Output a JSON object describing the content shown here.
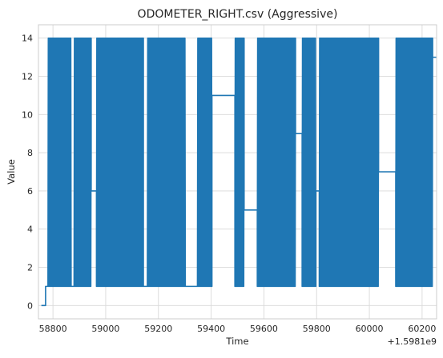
{
  "chart_data": {
    "type": "line",
    "title": "ODOMETER_RIGHT.csv (Aggressive)",
    "xlabel": "Time",
    "ylabel": "Value",
    "x_offset_label": "+1.5981e9",
    "xlim": [
      58745,
      60255
    ],
    "ylim": [
      -0.7,
      14.7
    ],
    "x_ticks": [
      58800,
      59000,
      59200,
      59400,
      59600,
      59800,
      60000,
      60200
    ],
    "y_ticks": [
      0,
      2,
      4,
      6,
      8,
      10,
      12,
      14
    ],
    "grid": true,
    "line_color": "#1f77b4",
    "segments": [
      {
        "kind": "step",
        "x_start": 58756,
        "x_end": 58772,
        "y": 0
      },
      {
        "kind": "step",
        "x_start": 58772,
        "x_end": 58781,
        "y": 1
      },
      {
        "kind": "dense",
        "x_start": 58781,
        "x_end": 58869,
        "y_min": 1,
        "y_max": 14
      },
      {
        "kind": "step",
        "x_start": 58869,
        "x_end": 58880,
        "y": 1
      },
      {
        "kind": "dense",
        "x_start": 58880,
        "x_end": 58945,
        "y_min": 1,
        "y_max": 14
      },
      {
        "kind": "step",
        "x_start": 58945,
        "x_end": 58965,
        "y": 6
      },
      {
        "kind": "dense",
        "x_start": 58965,
        "x_end": 59143,
        "y_min": 1,
        "y_max": 14
      },
      {
        "kind": "step",
        "x_start": 59143,
        "x_end": 59158,
        "y": 1
      },
      {
        "kind": "dense",
        "x_start": 59158,
        "x_end": 59302,
        "y_min": 1,
        "y_max": 14
      },
      {
        "kind": "step",
        "x_start": 59302,
        "x_end": 59348,
        "y": 1
      },
      {
        "kind": "dense",
        "x_start": 59348,
        "x_end": 59403,
        "y_min": 1,
        "y_max": 14
      },
      {
        "kind": "step",
        "x_start": 59403,
        "x_end": 59490,
        "y": 11
      },
      {
        "kind": "dense",
        "x_start": 59490,
        "x_end": 59525,
        "y_min": 1,
        "y_max": 14
      },
      {
        "kind": "step",
        "x_start": 59525,
        "x_end": 59575,
        "y": 5
      },
      {
        "kind": "dense",
        "x_start": 59575,
        "x_end": 59720,
        "y_min": 1,
        "y_max": 14
      },
      {
        "kind": "step",
        "x_start": 59720,
        "x_end": 59745,
        "y": 9
      },
      {
        "kind": "dense",
        "x_start": 59745,
        "x_end": 59797,
        "y_min": 1,
        "y_max": 14
      },
      {
        "kind": "step",
        "x_start": 59797,
        "x_end": 59810,
        "y": 6
      },
      {
        "kind": "dense",
        "x_start": 59810,
        "x_end": 60035,
        "y_min": 1,
        "y_max": 14
      },
      {
        "kind": "step",
        "x_start": 60035,
        "x_end": 60100,
        "y": 7
      },
      {
        "kind": "dense",
        "x_start": 60100,
        "x_end": 60240,
        "y_min": 1,
        "y_max": 14
      },
      {
        "kind": "step",
        "x_start": 60240,
        "x_end": 60255,
        "y": 13
      }
    ]
  }
}
